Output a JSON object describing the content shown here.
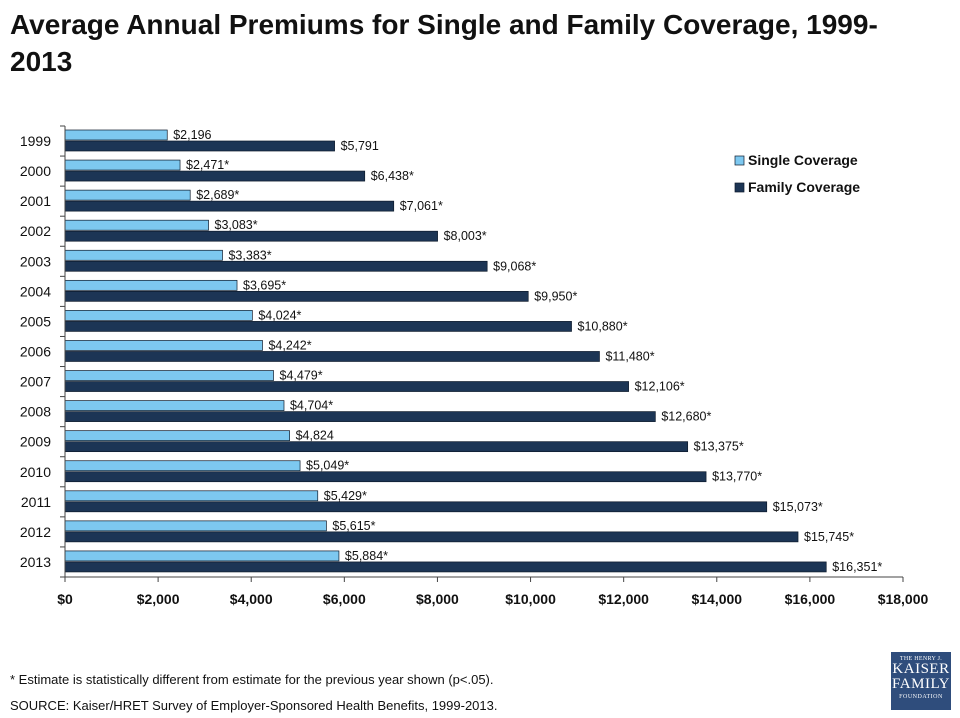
{
  "title": "Average Annual Premiums for Single and Family Coverage, 1999-2013",
  "footnote": "* Estimate is statistically different from estimate for the previous year shown (p<.05).",
  "source": "SOURCE:  Kaiser/HRET Survey of Employer-Sponsored Health Benefits, 1999-2013.",
  "logo": {
    "line1": "THE HENRY J.",
    "line2": "KAISER",
    "line3": "FAMILY",
    "line4": "FOUNDATION"
  },
  "colors": {
    "single": "#7dc8f0",
    "family": "#1c3555"
  },
  "chart_data": {
    "type": "bar",
    "orientation": "horizontal",
    "categories": [
      "1999",
      "2000",
      "2001",
      "2002",
      "2003",
      "2004",
      "2005",
      "2006",
      "2007",
      "2008",
      "2009",
      "2010",
      "2011",
      "2012",
      "2013"
    ],
    "series": [
      {
        "name": "Single Coverage",
        "values": [
          2196,
          2471,
          2689,
          3083,
          3383,
          3695,
          4024,
          4242,
          4479,
          4704,
          4824,
          5049,
          5429,
          5615,
          5884
        ],
        "labels": [
          "$2,196",
          "$2,471*",
          "$2,689*",
          "$3,083*",
          "$3,383*",
          "$3,695*",
          "$4,024*",
          "$4,242*",
          "$4,479*",
          "$4,704*",
          "$4,824",
          "$5,049*",
          "$5,429*",
          "$5,615*",
          "$5,884*"
        ]
      },
      {
        "name": "Family Coverage",
        "values": [
          5791,
          6438,
          7061,
          8003,
          9068,
          9950,
          10880,
          11480,
          12106,
          12680,
          13375,
          13770,
          15073,
          15745,
          16351
        ],
        "labels": [
          "$5,791",
          "$6,438*",
          "$7,061*",
          "$8,003*",
          "$9,068*",
          "$9,950*",
          "$10,880*",
          "$11,480*",
          "$12,106*",
          "$12,680*",
          "$13,375*",
          "$13,770*",
          "$15,073*",
          "$15,745*",
          "$16,351*"
        ]
      }
    ],
    "xlim": [
      0,
      18000
    ],
    "xticks": [
      0,
      2000,
      4000,
      6000,
      8000,
      10000,
      12000,
      14000,
      16000,
      18000
    ],
    "xtick_labels": [
      "$0",
      "$2,000",
      "$4,000",
      "$6,000",
      "$8,000",
      "$10,000",
      "$12,000",
      "$14,000",
      "$16,000",
      "$18,000"
    ],
    "legend_position": "top-right",
    "grid": false
  }
}
